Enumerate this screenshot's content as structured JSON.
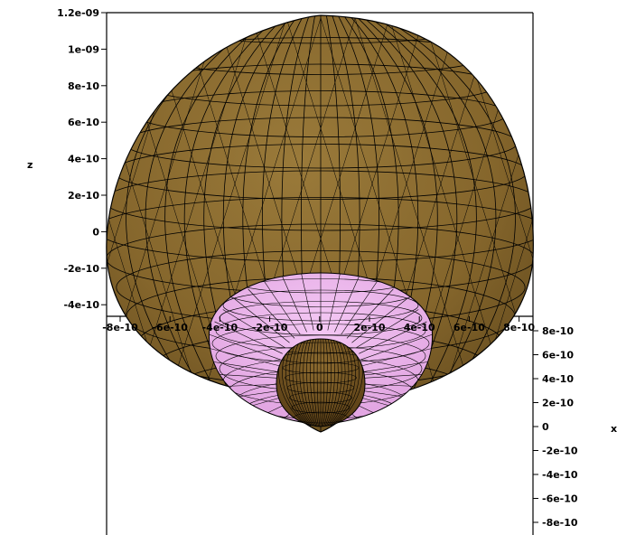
{
  "plot": {
    "type": "3d-surface-plot",
    "axes": {
      "z": {
        "label": "z",
        "ticks": [
          "1.2e-09",
          "1e-09",
          "8e-10",
          "6e-10",
          "4e-10",
          "2e-10",
          "0",
          "-2e-10",
          "-4e-10"
        ]
      },
      "x": {
        "label": "x",
        "ticks": [
          "8e-10",
          "6e-10",
          "4e-10",
          "2e-10",
          "0",
          "-2e-10",
          "-4e-10",
          "-6e-10",
          "-8e-10"
        ]
      },
      "y": {
        "ticks": [
          "-8e-10",
          "-6e-10",
          "-4e-10",
          "-2e-10",
          "0",
          "2e-10",
          "4e-10",
          "6e-10",
          "8e-10"
        ]
      }
    },
    "surfaces": [
      {
        "name": "outer-lobe",
        "color": "#85662c"
      },
      {
        "name": "middle-torus",
        "color": "#ecb6ec"
      },
      {
        "name": "inner-core",
        "color": "#7a5a22"
      }
    ],
    "mesh_color": "#000000"
  }
}
